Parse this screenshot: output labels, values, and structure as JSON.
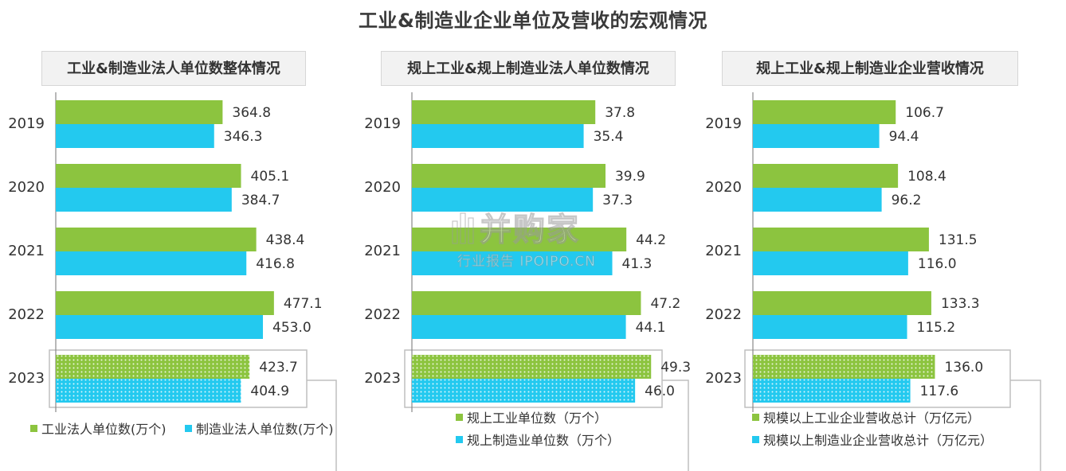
{
  "title": "工业&制造业企业单位及营收的宏观情况",
  "watermark": {
    "brand": "并购家",
    "sub": "行业报告 IPOIPO.CN"
  },
  "colors": {
    "green": "#8cc43f",
    "cyan": "#23c9ef",
    "axis": "#888888",
    "box": "#bfbfbf"
  },
  "chart_data": [
    {
      "type": "bar",
      "orientation": "horizontal",
      "title": "工业&制造业法人单位数整体情况",
      "categories": [
        "2019",
        "2020",
        "2021",
        "2022",
        "2023"
      ],
      "series": [
        {
          "name": "工业法人单位数(万个)",
          "color": "#8cc43f",
          "values": [
            364.8,
            405.1,
            438.4,
            477.1,
            423.7
          ]
        },
        {
          "name": "制造业法人单位数(万个)",
          "color": "#23c9ef",
          "values": [
            346.3,
            384.7,
            416.8,
            453.0,
            404.9
          ]
        }
      ],
      "labels": [
        [
          "364.8",
          "405.1",
          "438.4",
          "477.1",
          "423.7"
        ],
        [
          "346.3",
          "384.7",
          "416.8",
          "453.0",
          "404.9"
        ]
      ],
      "highlighted_category": "2023",
      "legend_position": "bottom"
    },
    {
      "type": "bar",
      "orientation": "horizontal",
      "title": "规上工业&规上制造业法人单位数情况",
      "categories": [
        "2019",
        "2020",
        "2021",
        "2022",
        "2023"
      ],
      "series": [
        {
          "name": "规上工业单位数（万个）",
          "color": "#8cc43f",
          "values": [
            37.8,
            39.9,
            44.2,
            47.2,
            49.3
          ]
        },
        {
          "name": "规上制造业单位数（万个）",
          "color": "#23c9ef",
          "values": [
            35.4,
            37.3,
            41.3,
            44.1,
            46.0
          ]
        }
      ],
      "labels": [
        [
          "37.8",
          "39.9",
          "44.2",
          "47.2",
          "49.3"
        ],
        [
          "35.4",
          "37.3",
          "41.3",
          "44.1",
          "46.0"
        ]
      ],
      "highlighted_category": "2023",
      "legend_position": "bottom"
    },
    {
      "type": "bar",
      "orientation": "horizontal",
      "title": "规上工业&规上制造业企业营收情况",
      "categories": [
        "2019",
        "2020",
        "2021",
        "2022",
        "2023"
      ],
      "series": [
        {
          "name": "规模以上工业企业营收总计（万亿元）",
          "color": "#8cc43f",
          "values": [
            106.7,
            108.4,
            131.5,
            133.3,
            136.0
          ]
        },
        {
          "name": "规模以上制造业企业营收总计（万亿元）",
          "color": "#23c9ef",
          "values": [
            94.4,
            96.2,
            116.0,
            115.2,
            117.6
          ]
        }
      ],
      "labels": [
        [
          "106.7",
          "108.4",
          "131.5",
          "133.3",
          "136.0"
        ],
        [
          "94.4",
          "96.2",
          "116.0",
          "115.2",
          "117.6"
        ]
      ],
      "highlighted_category": "2023",
      "legend_position": "bottom"
    }
  ]
}
